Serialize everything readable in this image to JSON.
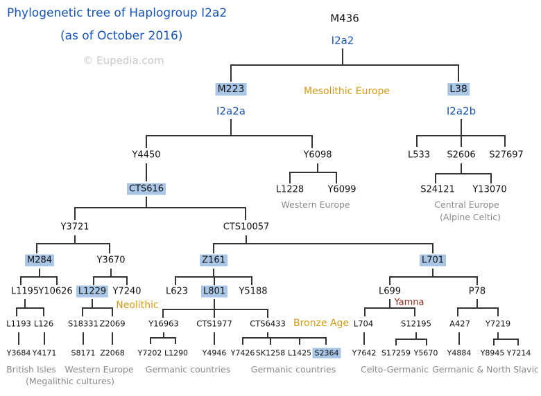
{
  "title": {
    "line1": "Phylogenetic tree of Haplogroup I2a2",
    "line2": "(as of October 2016)",
    "watermark": "© Eupedia.com"
  },
  "colors": {
    "title": "#1553b6",
    "highlight": "#a9c6e6",
    "period": "#d49a12",
    "yamna": "#8b2a1a",
    "region": "#8a8a8a",
    "lines": "#333333"
  },
  "nodes": {
    "M436": "M436",
    "I2a2": "I2a2",
    "M223": "M223",
    "L38": "L38",
    "I2a2a": "I2a2a",
    "I2a2b": "I2a2b",
    "Y4450": "Y4450",
    "Y6098": "Y6098",
    "L533": "L533",
    "S2606": "S2606",
    "S27697": "S27697",
    "CTS616": "CTS616",
    "L1228": "L1228",
    "Y6099": "Y6099",
    "S24121": "S24121",
    "Y13070": "Y13070",
    "Y3721": "Y3721",
    "CTS10057": "CTS10057",
    "M284": "M284",
    "Y3670": "Y3670",
    "Z161": "Z161",
    "L701": "L701",
    "L1195": "L1195",
    "Y10626": "Y10626",
    "L1229": "L1229",
    "Y7240": "Y7240",
    "L623": "L623",
    "L801": "L801",
    "Y5188": "Y5188",
    "L699": "L699",
    "P78": "P78",
    "L1193": "L1193",
    "L126": "L126",
    "S18331": "S18331",
    "Z2069": "Z2069",
    "Y16963": "Y16963",
    "CTS1977": "CTS1977",
    "CTS6433": "CTS6433",
    "L704": "L704",
    "S12195": "S12195",
    "A427": "A427",
    "Y7219": "Y7219",
    "Y3684": "Y3684",
    "Y4171": "Y4171",
    "S8171": "S8171",
    "Z2068": "Z2068",
    "Y7202": "Y7202",
    "L1290": "L1290",
    "Y4946": "Y4946",
    "Y7426": "Y7426",
    "SK1258": "SK1258",
    "L1425": "L1425",
    "S2364": "S2364",
    "Y7642": "Y7642",
    "S17259": "S17259",
    "Y5670": "Y5670",
    "Y4884": "Y4884",
    "Y8945": "Y8945",
    "Y7214": "Y7214"
  },
  "highlighted": [
    "M223",
    "L38",
    "CTS616",
    "M284",
    "Z161",
    "L701",
    "L1229",
    "L801",
    "S2364"
  ],
  "periods": {
    "mesolithic": "Mesolithic Europe",
    "neolithic": "Neolithic",
    "bronze": "Bronze Age",
    "yamna": "Yamna"
  },
  "regions": {
    "western_europe_1": "Western Europe",
    "central_europe": "Central Europe",
    "alpine_celtic": "(Alpine Celtic)",
    "british_isles": "British Isles",
    "megalithic": "(Megalithic cultures)",
    "western_europe_2": "Western Europe",
    "germanic_1": "Germanic countries",
    "germanic_2": "Germanic countries",
    "celto_germanic": "Celto-Germanic",
    "germanic_north_slavic": "Germanic & North Slavic"
  }
}
